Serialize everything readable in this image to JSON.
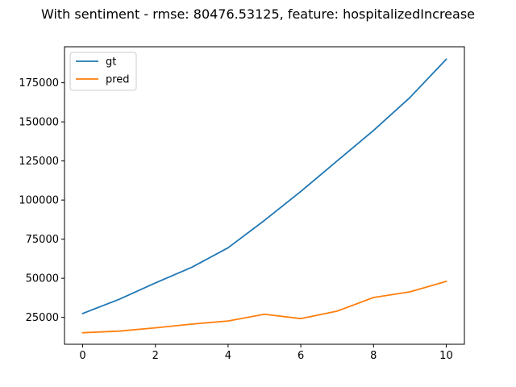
{
  "chart_data": {
    "type": "line",
    "title": "With sentiment - rmse: 80476.53125, feature: hospitalizedIncrease",
    "xlabel": "",
    "ylabel": "",
    "x": [
      0,
      1,
      2,
      3,
      4,
      5,
      6,
      7,
      8,
      9,
      10
    ],
    "xlim": [
      -0.5,
      10.5
    ],
    "ylim": [
      7800,
      198000
    ],
    "x_ticks": [
      0,
      2,
      4,
      6,
      8,
      10
    ],
    "y_ticks": [
      25000,
      50000,
      75000,
      100000,
      125000,
      150000,
      175000
    ],
    "grid": false,
    "legend_position": "top-left",
    "series": [
      {
        "name": "gt",
        "color": "#1f77b4",
        "values": [
          27500,
          36500,
          47000,
          57000,
          69500,
          87000,
          105500,
          125000,
          144500,
          165500,
          190000
        ]
      },
      {
        "name": "pred",
        "color": "#ff7f0e",
        "values": [
          15200,
          16200,
          18300,
          20700,
          22700,
          27000,
          24200,
          29000,
          37700,
          41300,
          48000
        ]
      }
    ]
  }
}
